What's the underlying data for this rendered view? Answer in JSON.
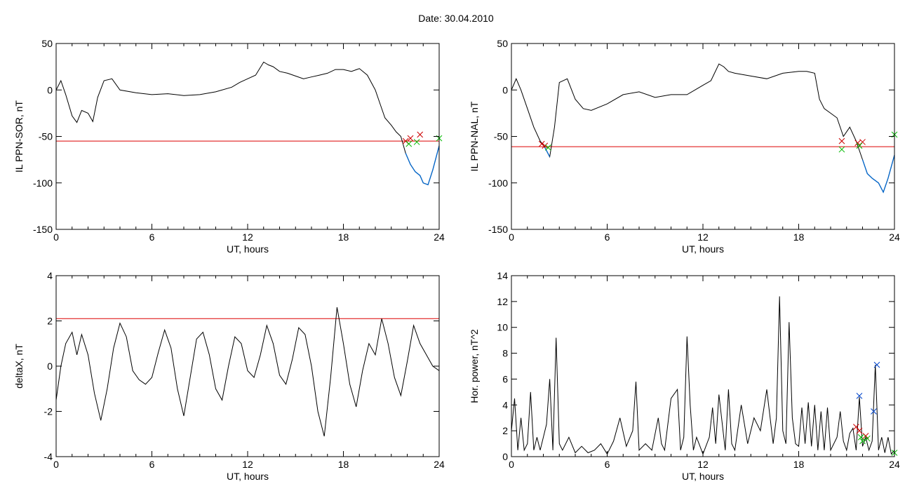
{
  "title": "Date:  30.04.2010",
  "colors": {
    "trace": "#000000",
    "threshold": "#dd0000",
    "below": "#0066cc",
    "mark_red": "#cc0000",
    "mark_green": "#00bb00",
    "mark_blue": "#0044cc"
  },
  "chart_data": [
    {
      "id": "sor",
      "type": "line",
      "xlabel": "UT, hours",
      "ylabel": "IL PPN-SOR, nT",
      "xlim": [
        0,
        24
      ],
      "ylim": [
        -150,
        50
      ],
      "xticks": [
        0,
        6,
        12,
        18,
        24
      ],
      "yticks": [
        -150,
        -100,
        -50,
        0,
        50
      ],
      "threshold": -55,
      "x": [
        0,
        0.3,
        0.6,
        1.0,
        1.3,
        1.6,
        2.0,
        2.3,
        2.6,
        3.0,
        3.5,
        4.0,
        5.0,
        6.0,
        7.0,
        8.0,
        9.0,
        10.0,
        11.0,
        11.5,
        12.0,
        12.5,
        13.0,
        13.3,
        13.6,
        14.0,
        14.5,
        15.0,
        15.5,
        16.0,
        16.5,
        17.0,
        17.5,
        18.0,
        18.5,
        19.0,
        19.5,
        20.0,
        20.3,
        20.6,
        21.0,
        21.3,
        21.6,
        21.9,
        22.2,
        22.5,
        22.8,
        23.0,
        23.3,
        23.6,
        24.0
      ],
      "y": [
        0,
        10,
        -5,
        -28,
        -35,
        -22,
        -25,
        -34,
        -8,
        10,
        12,
        0,
        -3,
        -5,
        -4,
        -6,
        -5,
        -2,
        3,
        8,
        12,
        16,
        30,
        27,
        25,
        20,
        18,
        15,
        12,
        14,
        16,
        18,
        22,
        22,
        20,
        23,
        16,
        0,
        -15,
        -30,
        -38,
        -45,
        -50,
        -68,
        -80,
        -88,
        -92,
        -100,
        -102,
        -86,
        -60
      ],
      "marks": {
        "red": [
          [
            21.9,
            -55
          ],
          [
            22.2,
            -52
          ],
          [
            22.8,
            -48
          ]
        ],
        "green": [
          [
            22.1,
            -58
          ],
          [
            22.6,
            -56
          ],
          [
            24.0,
            -52
          ]
        ]
      }
    },
    {
      "id": "nal",
      "type": "line",
      "xlabel": "UT, hours",
      "ylabel": "IL PPN-NAL, nT",
      "xlim": [
        0,
        24
      ],
      "ylim": [
        -150,
        50
      ],
      "xticks": [
        0,
        6,
        12,
        18,
        24
      ],
      "yticks": [
        -150,
        -100,
        -50,
        0,
        50
      ],
      "threshold": -61,
      "x": [
        0,
        0.3,
        0.6,
        1.0,
        1.4,
        1.8,
        2.1,
        2.4,
        2.7,
        3.0,
        3.5,
        4.0,
        4.5,
        5.0,
        6.0,
        7.0,
        8.0,
        9.0,
        10.0,
        11.0,
        12.0,
        12.5,
        13.0,
        13.3,
        13.6,
        14.0,
        15.0,
        16.0,
        17.0,
        18.0,
        18.5,
        19.0,
        19.3,
        19.6,
        20.0,
        20.4,
        20.8,
        21.2,
        21.6,
        22.0,
        22.3,
        22.6,
        23.0,
        23.3,
        23.6,
        24.0
      ],
      "y": [
        0,
        12,
        0,
        -20,
        -40,
        -55,
        -62,
        -72,
        -40,
        8,
        12,
        -10,
        -20,
        -22,
        -15,
        -5,
        -2,
        -8,
        -5,
        -5,
        5,
        10,
        28,
        25,
        20,
        18,
        15,
        12,
        18,
        20,
        20,
        18,
        -10,
        -20,
        -25,
        -30,
        -50,
        -40,
        -55,
        -75,
        -90,
        -95,
        -100,
        -110,
        -95,
        -70
      ],
      "marks": {
        "red": [
          [
            1.9,
            -58
          ],
          [
            2.1,
            -60
          ],
          [
            20.7,
            -55
          ],
          [
            21.7,
            -57
          ],
          [
            22.0,
            -56
          ]
        ],
        "green": [
          [
            2.3,
            -62
          ],
          [
            20.7,
            -64
          ],
          [
            21.8,
            -60
          ],
          [
            24.0,
            -48
          ]
        ]
      }
    },
    {
      "id": "deltax",
      "type": "line",
      "xlabel": "UT, hours",
      "ylabel": "deltaX, nT",
      "xlim": [
        0,
        24
      ],
      "ylim": [
        -4,
        4
      ],
      "xticks": [
        0,
        6,
        12,
        18,
        24
      ],
      "yticks": [
        -4,
        -2,
        0,
        2,
        4
      ],
      "threshold": 2.1,
      "x": [
        0,
        0.3,
        0.6,
        1.0,
        1.3,
        1.6,
        2.0,
        2.4,
        2.8,
        3.2,
        3.6,
        4.0,
        4.4,
        4.8,
        5.2,
        5.6,
        6.0,
        6.4,
        6.8,
        7.2,
        7.6,
        8.0,
        8.4,
        8.8,
        9.2,
        9.6,
        10.0,
        10.4,
        10.8,
        11.2,
        11.6,
        12.0,
        12.4,
        12.8,
        13.2,
        13.6,
        14.0,
        14.4,
        14.8,
        15.2,
        15.6,
        16.0,
        16.4,
        16.8,
        17.2,
        17.6,
        18.0,
        18.4,
        18.8,
        19.2,
        19.6,
        20.0,
        20.4,
        20.8,
        21.2,
        21.6,
        22.0,
        22.4,
        22.8,
        23.2,
        23.6,
        24.0
      ],
      "y": [
        -1.5,
        0,
        1.0,
        1.5,
        0.5,
        1.4,
        0.5,
        -1.2,
        -2.4,
        -1.0,
        0.8,
        1.9,
        1.3,
        -0.2,
        -0.6,
        -0.8,
        -0.5,
        0.6,
        1.6,
        0.8,
        -1.0,
        -2.2,
        -0.5,
        1.2,
        1.5,
        0.5,
        -1.0,
        -1.5,
        0,
        1.3,
        1.0,
        -0.2,
        -0.5,
        0.5,
        1.8,
        1.0,
        -0.4,
        -0.8,
        0.3,
        1.7,
        1.4,
        0,
        -2.0,
        -3.1,
        -0.5,
        2.6,
        1.0,
        -0.8,
        -1.8,
        -0.2,
        1.0,
        0.5,
        2.1,
        1.0,
        -0.5,
        -1.3,
        0.2,
        1.8,
        1.0,
        0.5,
        0,
        -0.2
      ]
    },
    {
      "id": "hpower",
      "type": "line",
      "xlabel": "UT, hours",
      "ylabel": "Hor. power, nT^2",
      "xlim": [
        0,
        24
      ],
      "ylim": [
        0,
        14
      ],
      "xticks": [
        0,
        6,
        12,
        18,
        24
      ],
      "yticks": [
        0,
        2,
        4,
        6,
        8,
        10,
        12,
        14
      ],
      "x": [
        0,
        0.2,
        0.4,
        0.6,
        0.8,
        1.0,
        1.2,
        1.4,
        1.6,
        1.8,
        2.0,
        2.2,
        2.4,
        2.6,
        2.8,
        3.0,
        3.2,
        3.6,
        4.0,
        4.4,
        4.8,
        5.2,
        5.6,
        6.0,
        6.4,
        6.8,
        7.2,
        7.6,
        7.8,
        8.0,
        8.4,
        8.8,
        9.2,
        9.4,
        9.6,
        10.0,
        10.4,
        10.6,
        10.8,
        11.0,
        11.2,
        11.4,
        11.6,
        12.0,
        12.4,
        12.6,
        12.8,
        13.0,
        13.4,
        13.6,
        13.8,
        14.0,
        14.4,
        14.6,
        14.8,
        15.2,
        15.6,
        16.0,
        16.4,
        16.6,
        16.8,
        17.0,
        17.2,
        17.4,
        17.6,
        17.8,
        18.0,
        18.2,
        18.4,
        18.6,
        18.8,
        19.0,
        19.2,
        19.4,
        19.6,
        19.8,
        20.0,
        20.4,
        20.6,
        20.8,
        21.0,
        21.2,
        21.4,
        21.6,
        21.8,
        22.0,
        22.2,
        22.4,
        22.6,
        22.8,
        23.0,
        23.2,
        23.4,
        23.6,
        23.8,
        24.0
      ],
      "y": [
        2,
        4.5,
        0.5,
        3,
        0.5,
        1,
        5,
        0.5,
        1.5,
        0.5,
        1.5,
        2.5,
        6,
        0.5,
        9.2,
        1,
        0.5,
        1.5,
        0.3,
        0.8,
        0.3,
        0.5,
        1,
        0.2,
        1.2,
        3,
        0.8,
        2,
        5.8,
        0.5,
        1,
        0.5,
        3,
        1,
        0.5,
        4.5,
        5.2,
        0.5,
        1.5,
        9.3,
        4,
        0.5,
        1.5,
        0.2,
        1.5,
        3.8,
        1,
        4.8,
        0.5,
        5.2,
        1,
        0.5,
        4,
        2.5,
        1,
        3,
        2,
        5.2,
        1,
        3,
        12.4,
        2,
        1,
        10.4,
        3,
        1,
        0.8,
        3.8,
        1,
        4.2,
        0.8,
        4,
        0.5,
        3.5,
        0.5,
        3.8,
        0.5,
        1.5,
        3.5,
        1.2,
        0.5,
        1.8,
        2.2,
        0.5,
        4.6,
        0.8,
        1.5,
        0.5,
        1.2,
        7.1,
        0.5,
        1.5,
        0.3,
        1.5,
        0.2,
        0.5
      ],
      "marks": {
        "red": [
          [
            21.6,
            2.3
          ],
          [
            21.8,
            2.0
          ],
          [
            22.2,
            1.6
          ]
        ],
        "green": [
          [
            21.9,
            1.5
          ],
          [
            22.0,
            1.2
          ],
          [
            22.3,
            1.4
          ],
          [
            24.0,
            0.3
          ]
        ],
        "blue": [
          [
            21.8,
            4.7
          ],
          [
            22.7,
            3.5
          ],
          [
            22.9,
            7.1
          ]
        ]
      }
    }
  ]
}
